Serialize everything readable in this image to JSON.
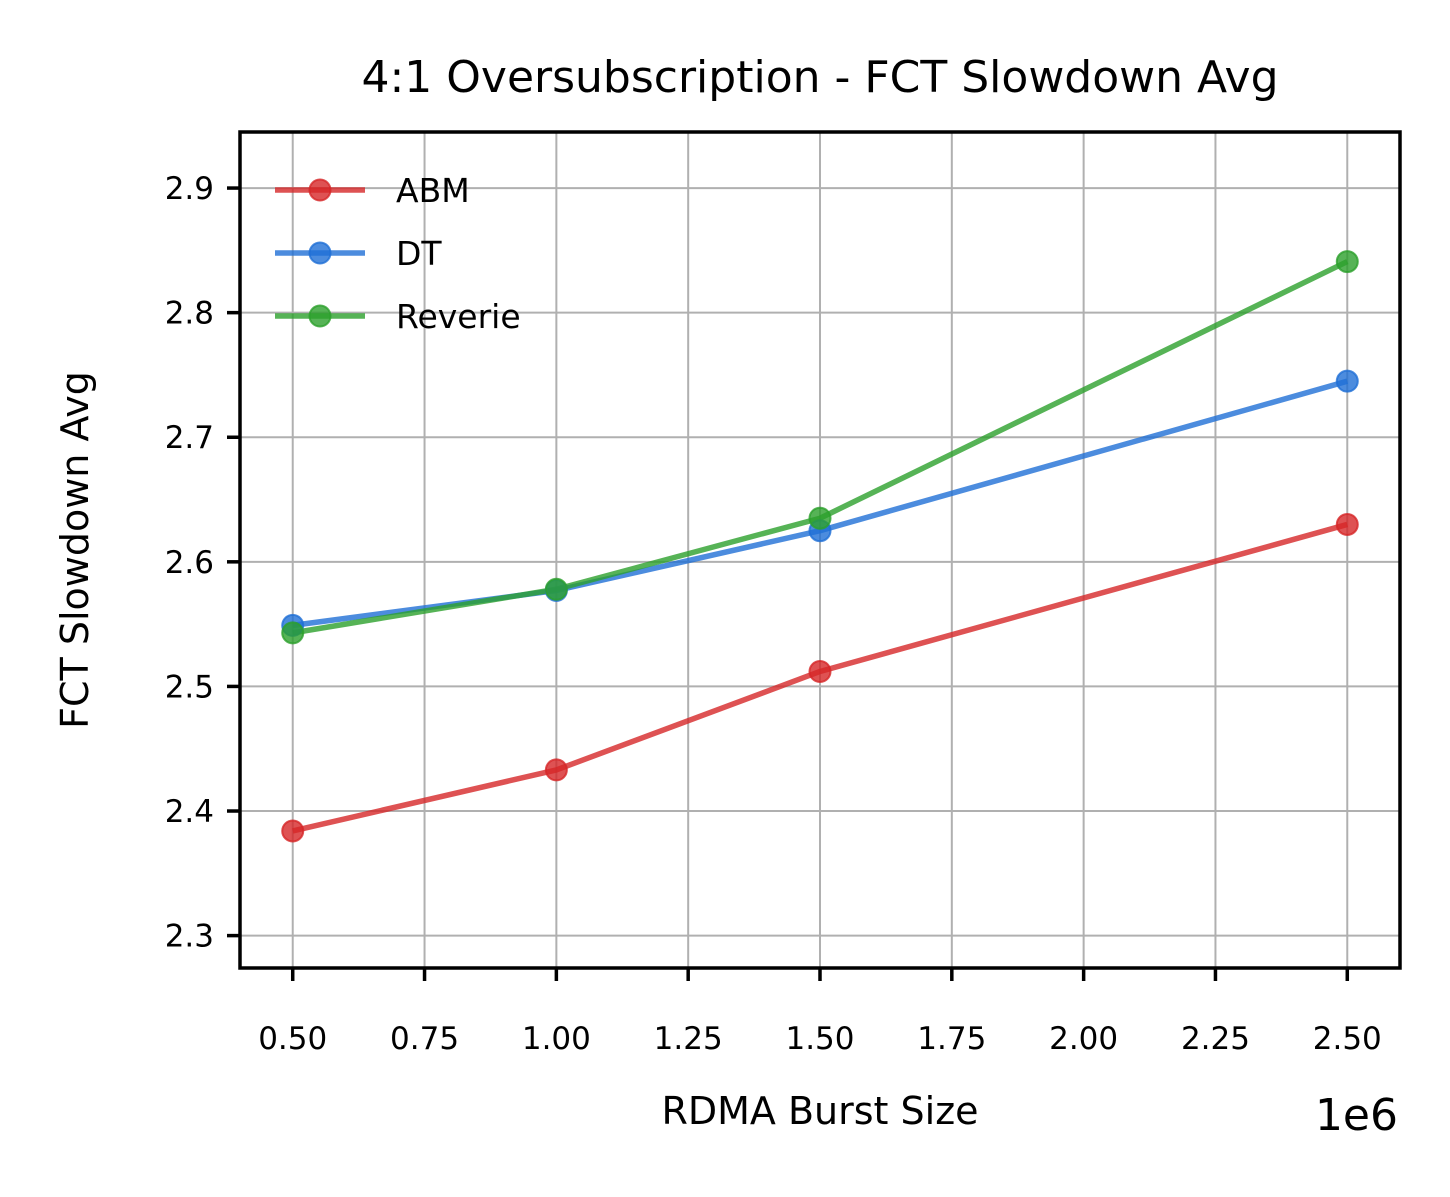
{
  "chart_data": {
    "type": "line",
    "title": "4:1 Oversubscription - FCT Slowdown Avg",
    "xlabel": "RDMA Burst Size",
    "ylabel": "FCT Slowdown Avg",
    "x_offset_label": "1e6",
    "x": [
      0.5,
      1.0,
      1.5,
      2.5
    ],
    "xlim": [
      0.4,
      2.6
    ],
    "ylim": [
      2.274,
      2.945
    ],
    "xticks": [
      0.5,
      0.75,
      1.0,
      1.25,
      1.5,
      1.75,
      2.0,
      2.25,
      2.5
    ],
    "xtick_labels": [
      "0.50",
      "0.75",
      "1.00",
      "1.25",
      "1.50",
      "1.75",
      "2.00",
      "2.25",
      "2.50"
    ],
    "yticks": [
      2.3,
      2.4,
      2.5,
      2.6,
      2.7,
      2.8,
      2.9
    ],
    "ytick_labels": [
      "2.3",
      "2.4",
      "2.5",
      "2.6",
      "2.7",
      "2.8",
      "2.9"
    ],
    "grid": true,
    "legend_position": "top-left",
    "series": [
      {
        "name": "ABM",
        "color": "#d62728",
        "values": [
          2.384,
          2.433,
          2.512,
          2.63
        ]
      },
      {
        "name": "DT",
        "color": "#1f6fd6",
        "values": [
          2.549,
          2.577,
          2.625,
          2.745
        ]
      },
      {
        "name": "Reverie",
        "color": "#2ca02c",
        "values": [
          2.543,
          2.578,
          2.635,
          2.841
        ]
      }
    ]
  }
}
